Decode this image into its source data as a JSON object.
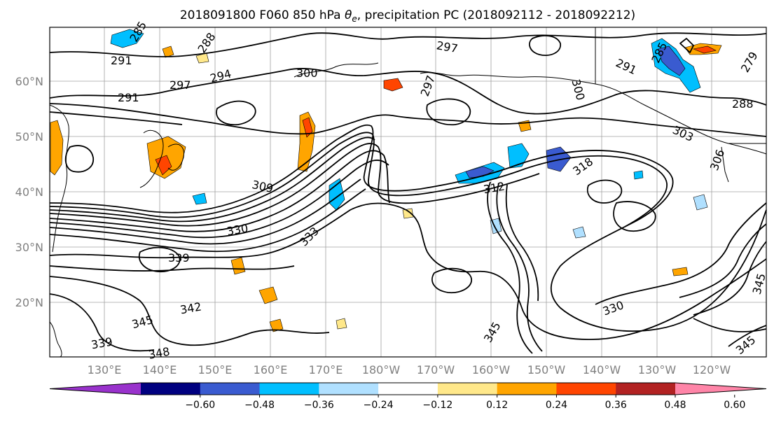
{
  "title_main": "2018091800 F060 850 hPa ",
  "title_theta": "θ",
  "title_sub": "e",
  "title_rest": ", precipitation PC (2018092112 - 2018092212)",
  "lat_labels": [
    "60°N",
    "50°N",
    "40°N",
    "30°N",
    "20°N"
  ],
  "lon_labels": [
    "130°E",
    "140°E",
    "150°E",
    "160°E",
    "170°E",
    "180°W",
    "170°W",
    "160°W",
    "150°W",
    "140°W",
    "130°W",
    "120°W"
  ],
  "colorbar": {
    "colors": [
      "#9932cc",
      "#000080",
      "#3a5bd0",
      "#00bfff",
      "#b0e0ff",
      "#ffffff",
      "#ffe88a",
      "#ffa500",
      "#ff4500",
      "#b22222",
      "#ff85a8"
    ],
    "ticks": [
      "−0.60",
      "−0.48",
      "−0.36",
      "−0.24",
      "−0.12",
      "0.12",
      "0.24",
      "0.36",
      "0.48",
      "0.60"
    ]
  },
  "contour_labels": [
    {
      "text": "291"
    },
    {
      "text": "285"
    },
    {
      "text": "288"
    },
    {
      "text": "294"
    },
    {
      "text": "297"
    },
    {
      "text": "300"
    },
    {
      "text": "291"
    },
    {
      "text": "297"
    },
    {
      "text": "297"
    },
    {
      "text": "300"
    },
    {
      "text": "309"
    },
    {
      "text": "312"
    },
    {
      "text": "318"
    },
    {
      "text": "330"
    },
    {
      "text": "333"
    },
    {
      "text": "339"
    },
    {
      "text": "342"
    },
    {
      "text": "345"
    },
    {
      "text": "339"
    },
    {
      "text": "348"
    },
    {
      "text": "345"
    },
    {
      "text": "345"
    },
    {
      "text": "330"
    },
    {
      "text": "285"
    },
    {
      "text": "291"
    },
    {
      "text": "279"
    },
    {
      "text": "288"
    },
    {
      "text": "306"
    },
    {
      "text": "303"
    },
    {
      "text": "345"
    }
  ]
}
